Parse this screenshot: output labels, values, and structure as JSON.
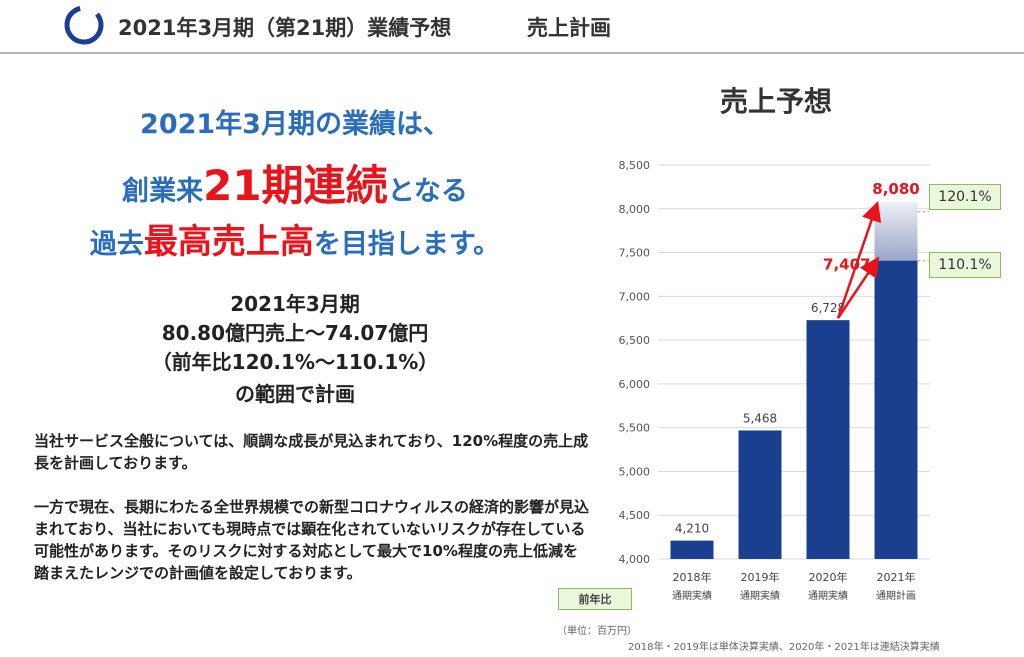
{
  "header": {
    "title": "2021年3月期（第21期）業績予想",
    "subtitle": "売上計画"
  },
  "headline": {
    "line1": "2021年3月期の業績は、",
    "line2_pre": "創業来",
    "line2_highlight": "21期連続",
    "line2_post": "となる",
    "line3_pre": "過去",
    "line3_highlight": "最高売上高",
    "line3_post": "を目指します。"
  },
  "plan": {
    "line1": "2021年3月期",
    "line2": "80.80億円売上～74.07億円",
    "line3": "（前年比120.1%～110.1%）",
    "line4": "の範囲で計画"
  },
  "body": {
    "para1": "当社サービス全般については、順調な成長が見込まれており、120%程度の売上成長を計画しております。",
    "para2": "一方で現在、長期にわたる全世界規模での新型コロナウィルスの経済的影響が見込まれており、当社においても現時点では顕在化されていないリスクが存在している可能性があります。そのリスクに対する対応として最大で10%程度の売上低減を踏まえたレンジでの計画値を設定しております。"
  },
  "chart_data": {
    "type": "bar",
    "title": "売上予想",
    "categories": [
      "2018年",
      "2019年",
      "2020年",
      "2021年"
    ],
    "category_sublabels": [
      "通期実績",
      "通期実績",
      "通期実績",
      "通期計画"
    ],
    "values": [
      4210,
      5468,
      6728,
      7407
    ],
    "value_labels": [
      "4,210",
      "5,468",
      "6,728",
      "7,407"
    ],
    "upper_range": {
      "category": "2021年",
      "value": 8080,
      "label": "8,080"
    },
    "ylim": [
      4000,
      8500
    ],
    "yticks": [
      4000,
      4500,
      5000,
      5500,
      6000,
      6500,
      7000,
      7500,
      8000,
      8500
    ],
    "ytick_labels": [
      "4,000",
      "4,500",
      "5,000",
      "5,500",
      "6,000",
      "6,500",
      "7,000",
      "7,500",
      "8,000",
      "8,500"
    ],
    "callout_high": "120.1%",
    "callout_low": "110.1%",
    "legend_label": "前年比",
    "unit_note": "（単位：百万円）",
    "footnote": "2018年・2019年は単体決算実績、2020年・2021年は連結決算実績",
    "colors": {
      "bar": "#1b3f8f",
      "range_top": "#c2c9de",
      "arrow": "#e8131b",
      "callout_bg": "#eaf7da",
      "callout_border": "#8bbd5e",
      "grid": "#d9d9d9"
    }
  }
}
